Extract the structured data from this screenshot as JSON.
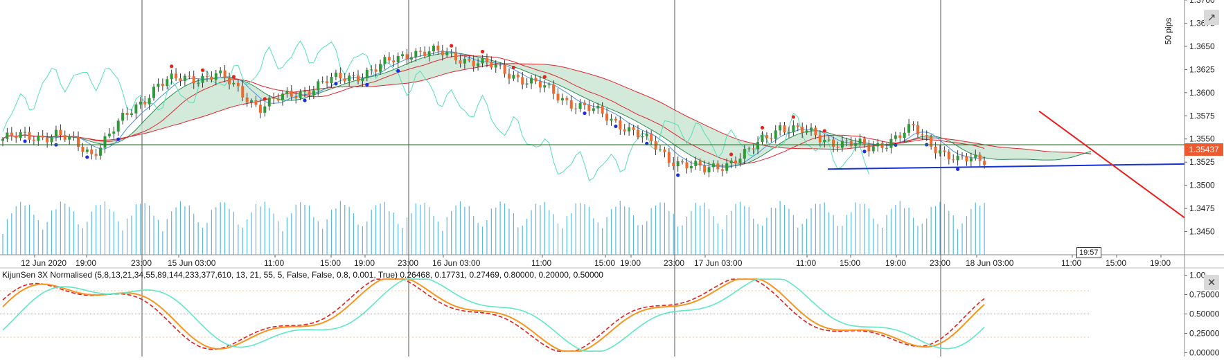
{
  "chart_data": [
    {
      "type": "candlestick",
      "title": "",
      "y_unit": "price",
      "ylim": [
        1.3425,
        1.37
      ],
      "y_ticks": [
        "1.3700",
        "1.3675",
        "1.3650",
        "1.3625",
        "1.3600",
        "1.3575",
        "1.3550",
        "1.3525",
        "1.3500",
        "1.3475",
        "1.3450"
      ],
      "x_ticks": [
        "12 Jun 2020",
        "19:00",
        "23:00",
        "15 Jun 03:00",
        "11:00",
        "15:00",
        "19:00",
        "23:00",
        "16 Jun 03:00",
        "11:00",
        "15:00",
        "19:00",
        "23:00",
        "17 Jun 03:00",
        "11:00",
        "15:00",
        "19:00",
        "23:00",
        "18 Jun 03:00",
        "11:00",
        "15:00",
        "19:00"
      ],
      "price_line": {
        "value": 1.35437,
        "label": "1.35437",
        "color": "#ee5a2f"
      },
      "countdown_label": "19:57",
      "pips_label": "50 pips",
      "candle_colors": {
        "up": "#2f9a3a",
        "down": "#ee6b2f"
      },
      "series": [
        {
          "name": "",
          "color": "#4a90e2",
          "style": "tenkan"
        },
        {
          "name": "",
          "color": "#e0242f",
          "style": "kijun"
        },
        {
          "name": "",
          "color": "#53e0b4",
          "style": "chikou"
        }
      ],
      "cloud_colors": {
        "bull": "#c8e3d0",
        "bear": "#f9c9c7"
      },
      "volume_color": "#5ab8e6",
      "trendlines": [
        {
          "color": "#1731d8",
          "from": [
            1.35175
          ],
          "to": [
            1.3523
          ]
        },
        {
          "color": "#ee1b1b",
          "from": [
            1.358
          ],
          "to": [
            1.3465
          ]
        }
      ],
      "horizontal_line": {
        "value": 1.35437,
        "color": "#2d7d2d"
      }
    },
    {
      "type": "line",
      "title": "KijunSen 3X Normalised (5,8,13,21,34,55,89,144,233,377,610, 13, 21, 55, 5, False, False, 0.8, 0.001, True) 0.26468, 0.17731, 0.27469, 0.80000, 0.20000, 0.50000",
      "ylim": [
        -0.05,
        1.05
      ],
      "y_ticks": [
        "1.00",
        "0.75000",
        "0.50000",
        "0.25000",
        "0.00000"
      ],
      "levels": [
        0.8,
        0.5,
        0.2
      ],
      "series": [
        {
          "name": "",
          "color": "#e02020",
          "style": "dashed",
          "last": 0.26468
        },
        {
          "name": "",
          "color": "#f5951e",
          "style": "solid",
          "last": 0.17731
        },
        {
          "name": "",
          "color": "#5ee8c6",
          "style": "solid",
          "last": 0.27469
        }
      ]
    }
  ]
}
